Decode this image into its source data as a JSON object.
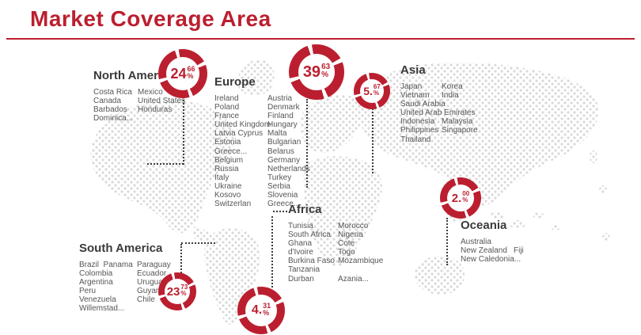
{
  "slide": {
    "title": "Market Coverage Area"
  },
  "colors": {
    "accent_red": "#bb1f2f",
    "map_dot": "#d9d9d9",
    "leader": "#3c3c3c",
    "heading_text": "#3a3a3a",
    "body_text": "#565656"
  },
  "percent_symbol": "%",
  "chart_data": {
    "type": "pie",
    "title": "Market Coverage Area",
    "categories": [
      "North America",
      "Europe",
      "Asia",
      "South America",
      "Africa",
      "Oceania"
    ],
    "values": [
      24.66,
      39.63,
      5.67,
      23.73,
      4.31,
      2.0
    ],
    "unit": "%",
    "legend_position": "none",
    "note": "six donut gauges placed over a dotted world map, each linked to a region country list by a dotted leader line"
  },
  "regions": [
    {
      "id": "north-america",
      "name": "North America",
      "value": 24.66,
      "value_int": "24",
      "value_dec": "66",
      "col1": [
        "Costa Rica",
        "Canada",
        "Barbados",
        "Dominica..."
      ],
      "col2": [
        "Mexico",
        "United States",
        "Honduras"
      ]
    },
    {
      "id": "europe",
      "name": "Europe",
      "value": 39.63,
      "value_int": "39",
      "value_dec": "63",
      "col1": [
        "Ireland",
        "Poland",
        "France",
        "United Kingdom",
        "Latvia Cyprus",
        "Estonia",
        "Greece...",
        "Belgium",
        "Russia",
        "Italy",
        "Ukraine",
        "Kosovo",
        "Switzerlan"
      ],
      "col2": [
        "Austria",
        "Denmark",
        "Finland",
        "Hungary",
        "Malta",
        "Bulgarian",
        "Belarus",
        "Germany",
        "Netherlands",
        "Turkey",
        "Serbia",
        "Slovenia",
        "Greece..."
      ]
    },
    {
      "id": "asia",
      "name": "Asia",
      "value": 5.67,
      "value_int": "5.",
      "value_dec": "67",
      "col1": [
        "Japan",
        "Vietnam",
        "Saudi Arabia",
        "United Arab Emirates",
        "Indonesia",
        "Philippines",
        "Thailand"
      ],
      "col2": [
        "Korea",
        "India",
        "",
        "",
        "Malaysia",
        "Singapore"
      ]
    },
    {
      "id": "south-america",
      "name": "South America",
      "value": 23.73,
      "value_int": "23",
      "value_dec": "73",
      "col1": [
        "Brazil  Panama",
        "Colombia",
        "Argentina",
        "Peru",
        "Venezuela",
        "Willemstad..."
      ],
      "col2": [
        "Paraguay",
        "Ecuador",
        "Uruguay",
        "Guyana",
        "Chile"
      ]
    },
    {
      "id": "africa",
      "name": "Africa",
      "value": 4.31,
      "value_int": "4.",
      "value_dec": "31",
      "col1": [
        "Tunisia",
        "South Africa",
        "Ghana",
        "d'Ivoire",
        "Burkina Faso",
        "Tanzania",
        "Durban"
      ],
      "col2": [
        "Morocco",
        "Nigeria",
        "Cote",
        "Togo",
        "Mozambique",
        "",
        "Azania..."
      ]
    },
    {
      "id": "oceania",
      "name": "Oceania",
      "value": 2.0,
      "value_int": "2.",
      "value_dec": "00",
      "col1": [
        "Australia",
        "New Zealand",
        "New Caledonia..."
      ],
      "col2": [
        "",
        "Fiji",
        ""
      ]
    }
  ]
}
